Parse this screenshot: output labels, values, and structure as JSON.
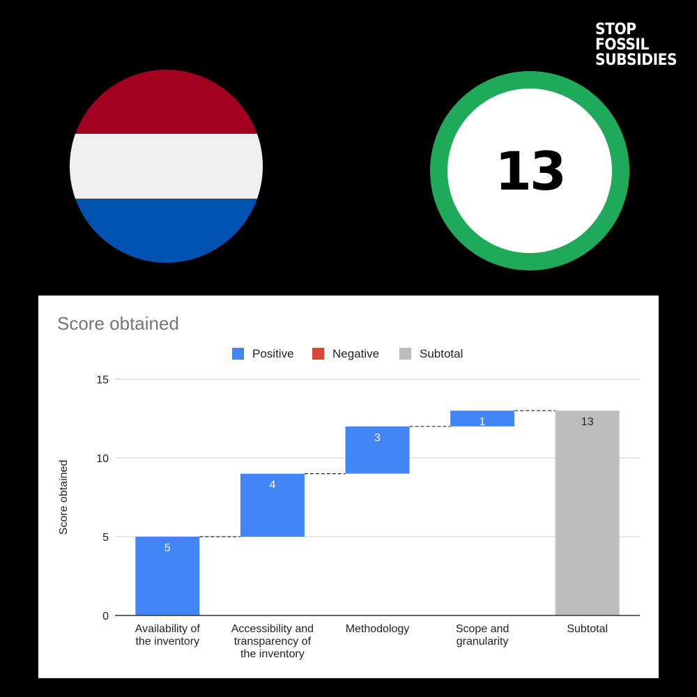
{
  "logo": {
    "lines": [
      "STOP",
      "FOSSIL",
      "SUBSIDIES"
    ]
  },
  "flag": {
    "colors": [
      "#a1001f",
      "#efefef",
      "#0051b0"
    ]
  },
  "score": {
    "value": "13",
    "ring_color": "#1faa59"
  },
  "chart_data": {
    "type": "bar",
    "subtype": "waterfall",
    "title": "Score obtained",
    "ylabel": "Score obtained",
    "xlabel": "",
    "ylim": [
      0,
      15
    ],
    "yticks": [
      0,
      5,
      10,
      15
    ],
    "grid": true,
    "legend": {
      "placement": "top-center",
      "entries": [
        {
          "name": "Positive",
          "color": "#4285f4"
        },
        {
          "name": "Negative",
          "color": "#db4437"
        },
        {
          "name": "Subtotal",
          "color": "#bdbdbd"
        }
      ]
    },
    "categories": [
      [
        "Availability of",
        "the inventory"
      ],
      [
        "Accessibility and",
        "transparency of",
        "the inventory"
      ],
      [
        "Methodology"
      ],
      [
        "Scope and",
        "granularity"
      ],
      [
        "Subtotal"
      ]
    ],
    "values": [
      5,
      4,
      3,
      1,
      13
    ],
    "kinds": [
      "positive",
      "positive",
      "positive",
      "positive",
      "subtotal"
    ],
    "data_labels": [
      "5",
      "4",
      "3",
      "1",
      "13"
    ]
  }
}
